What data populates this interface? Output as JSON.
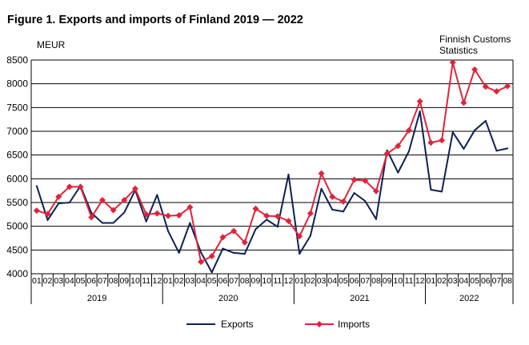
{
  "header": {
    "title": "Figure 1. Exports and imports of Finland 2019 — 2022",
    "unit": "MEUR",
    "source_line1": "Finnish Customs",
    "source_line2": "Statistics"
  },
  "chart_data": {
    "type": "line",
    "title": "Figure 1. Exports and imports of Finland 2019 — 2022",
    "ylabel": "MEUR",
    "xlabel": "",
    "ylim": [
      4000,
      8500
    ],
    "yticks": [
      4000,
      4500,
      5000,
      5500,
      6000,
      6500,
      7000,
      7500,
      8000,
      8500
    ],
    "grid": "horizontal",
    "legend_position": "bottom",
    "months": [
      "01",
      "02",
      "03",
      "04",
      "05",
      "06",
      "07",
      "08",
      "09",
      "10",
      "11",
      "12",
      "01",
      "02",
      "03",
      "04",
      "05",
      "06",
      "07",
      "08",
      "09",
      "10",
      "11",
      "12",
      "01",
      "02",
      "03",
      "04",
      "05",
      "06",
      "07",
      "08",
      "09",
      "10",
      "11",
      "12",
      "01",
      "02",
      "03",
      "04",
      "05",
      "06",
      "07",
      "08"
    ],
    "years": [
      {
        "label": "2019",
        "count": 12
      },
      {
        "label": "2020",
        "count": 12
      },
      {
        "label": "2021",
        "count": 12
      },
      {
        "label": "2022",
        "count": 8
      }
    ],
    "series": [
      {
        "name": "Exports",
        "color": "#0d2156",
        "marker": "none",
        "values": [
          5850,
          5130,
          5480,
          5500,
          5850,
          5280,
          5070,
          5070,
          5290,
          5760,
          5100,
          5660,
          4900,
          4440,
          5070,
          4450,
          4030,
          4530,
          4440,
          4420,
          4940,
          5140,
          4990,
          6090,
          4420,
          4800,
          5790,
          5350,
          5310,
          5700,
          5530,
          5150,
          6600,
          6130,
          6580,
          7420,
          5770,
          5730,
          6980,
          6630,
          7020,
          7220,
          6590,
          6640
        ]
      },
      {
        "name": "Imports",
        "color": "#e0233c",
        "marker": "diamond",
        "values": [
          5330,
          5260,
          5620,
          5830,
          5830,
          5190,
          5550,
          5340,
          5550,
          5790,
          5250,
          5270,
          5220,
          5230,
          5400,
          4250,
          4370,
          4770,
          4900,
          4660,
          5370,
          5220,
          5210,
          5110,
          4790,
          5270,
          6110,
          5620,
          5520,
          5980,
          5960,
          5740,
          6530,
          6690,
          7020,
          7630,
          6760,
          6810,
          8450,
          7600,
          8300,
          7940,
          7840,
          7950
        ]
      }
    ]
  }
}
